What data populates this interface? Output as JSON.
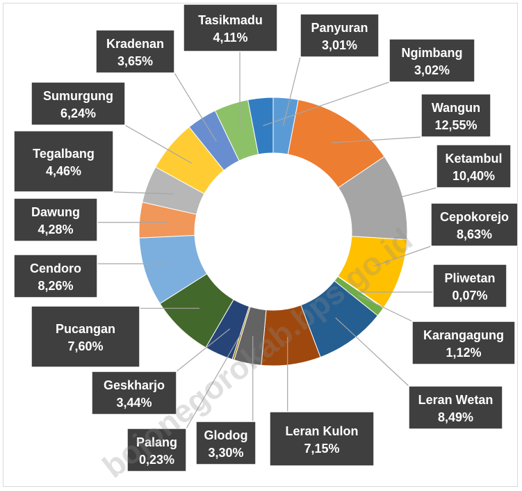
{
  "watermark": "bojonegorokab.bps.go.id",
  "chart_data": {
    "type": "pie",
    "donut": true,
    "title": "",
    "legend": "none",
    "slices": [
      {
        "name": "Panyuran",
        "value_label": "3,01%",
        "value": 3.01,
        "color": "#5b9bd5"
      },
      {
        "name": "Wangun",
        "value_label": "12,55%",
        "value": 12.55,
        "color": "#ed7d31"
      },
      {
        "name": "Ketambul",
        "value_label": "10,40%",
        "value": 10.4,
        "color": "#a5a5a5"
      },
      {
        "name": "Cepokorejo",
        "value_label": "8,63%",
        "value": 8.63,
        "color": "#ffc000"
      },
      {
        "name": "Pliwetan",
        "value_label": "0,07%",
        "value": 0.07,
        "color": "#4472c4"
      },
      {
        "name": "Karangagung",
        "value_label": "1,12%",
        "value": 1.12,
        "color": "#70ad47"
      },
      {
        "name": "Leran Wetan",
        "value_label": "8,49%",
        "value": 8.49,
        "color": "#255e91"
      },
      {
        "name": "Leran Kulon",
        "value_label": "7,15%",
        "value": 7.15,
        "color": "#9e480e"
      },
      {
        "name": "Glodog",
        "value_label": "3,30%",
        "value": 3.3,
        "color": "#636363"
      },
      {
        "name": "Palang",
        "value_label": "0,23%",
        "value": 0.23,
        "color": "#997300"
      },
      {
        "name": "Geskharjo",
        "value_label": "3,44%",
        "value": 3.44,
        "color": "#264478"
      },
      {
        "name": "Pucangan",
        "value_label": "7,60%",
        "value": 7.6,
        "color": "#43682b"
      },
      {
        "name": "Cendoro",
        "value_label": "8,26%",
        "value": 8.26,
        "color": "#7cafdd"
      },
      {
        "name": "Dawung",
        "value_label": "4,28%",
        "value": 4.28,
        "color": "#f1975a"
      },
      {
        "name": "Tegalbang",
        "value_label": "4,46%",
        "value": 4.46,
        "color": "#b7b7b7"
      },
      {
        "name": "Sumurgung",
        "value_label": "6,24%",
        "value": 6.24,
        "color": "#ffcd33"
      },
      {
        "name": "Kradenan",
        "value_label": "3,65%",
        "value": 3.65,
        "color": "#698ed0"
      },
      {
        "name": "Tasikmadu",
        "value_label": "4,11%",
        "value": 4.11,
        "color": "#8cc168"
      },
      {
        "name": "Ngimbang",
        "value_label": "3,02%",
        "value": 3.02,
        "color": "#327dc2"
      }
    ]
  }
}
